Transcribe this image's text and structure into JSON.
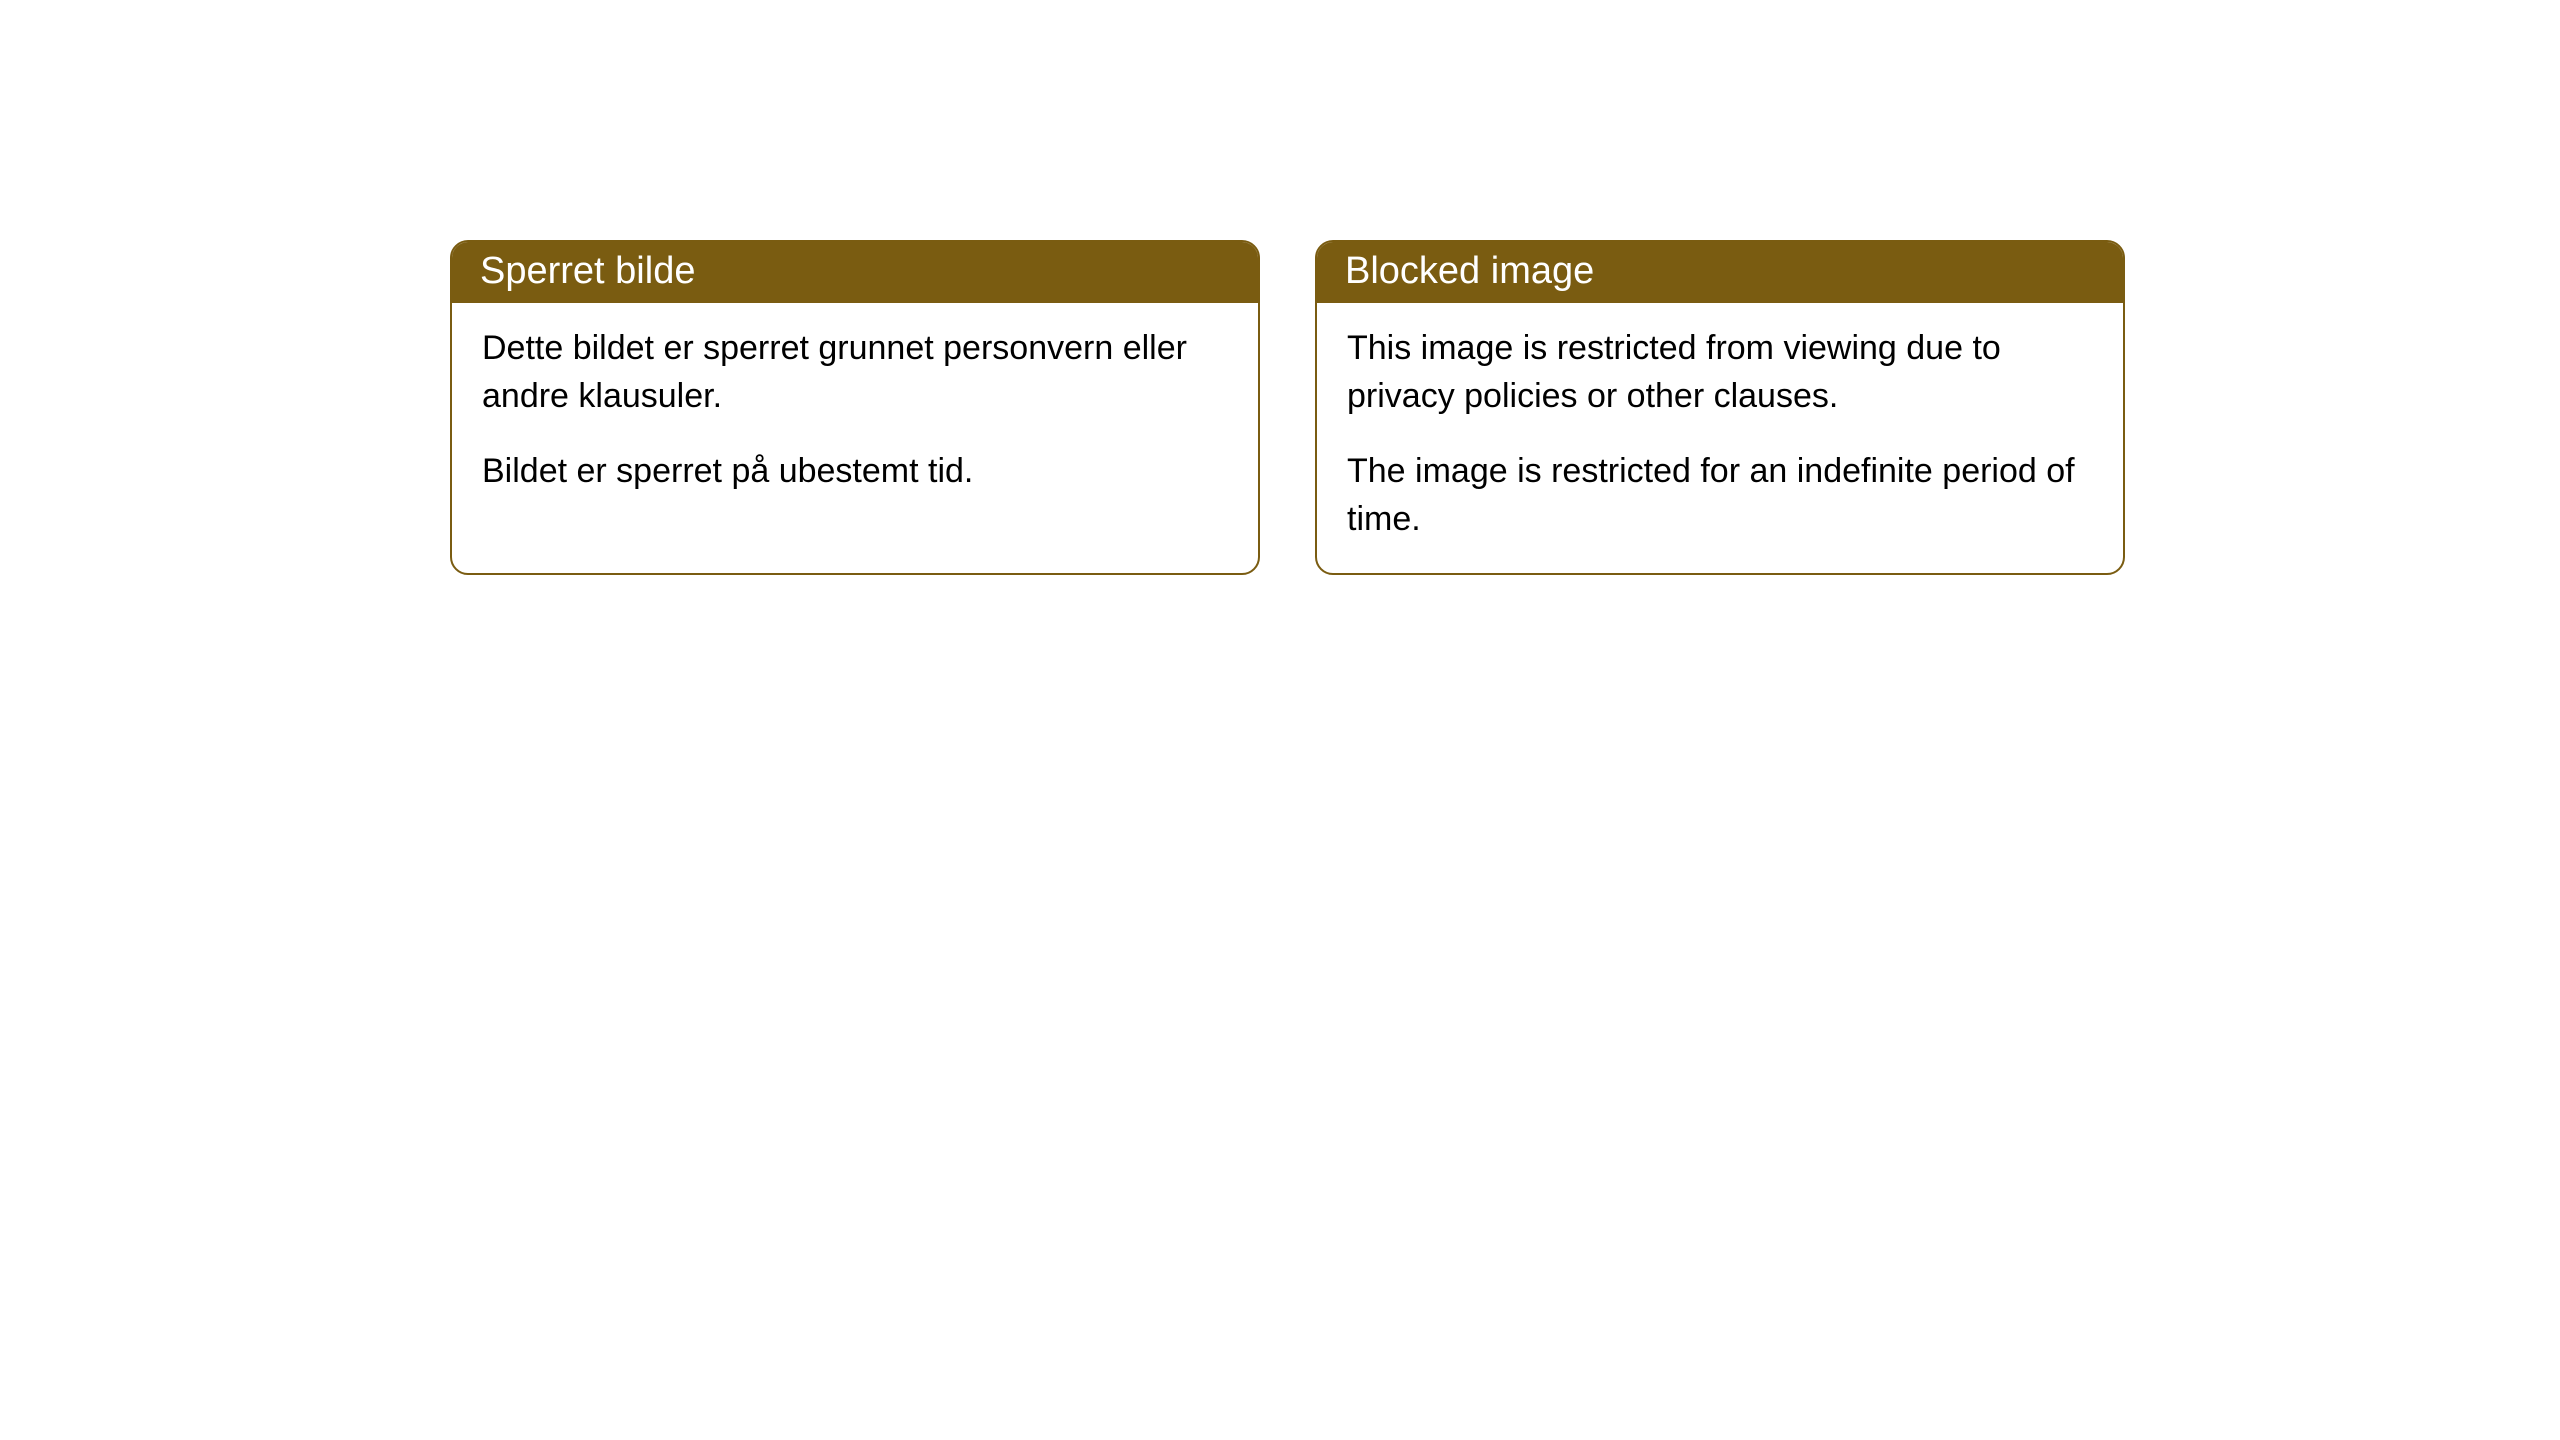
{
  "cards": [
    {
      "title": "Sperret bilde",
      "paragraph1": "Dette bildet er sperret grunnet personvern eller andre klausuler.",
      "paragraph2": "Bildet er sperret på ubestemt tid."
    },
    {
      "title": "Blocked image",
      "paragraph1": "This image is restricted from viewing due to privacy policies or other clauses.",
      "paragraph2": "The image is restricted for an indefinite period of time."
    }
  ],
  "styling": {
    "header_background_color": "#7a5c11",
    "header_text_color": "#ffffff",
    "border_color": "#7a5c11",
    "body_background_color": "#ffffff",
    "body_text_color": "#000000",
    "border_radius": 18,
    "title_fontsize": 38,
    "body_fontsize": 34
  }
}
